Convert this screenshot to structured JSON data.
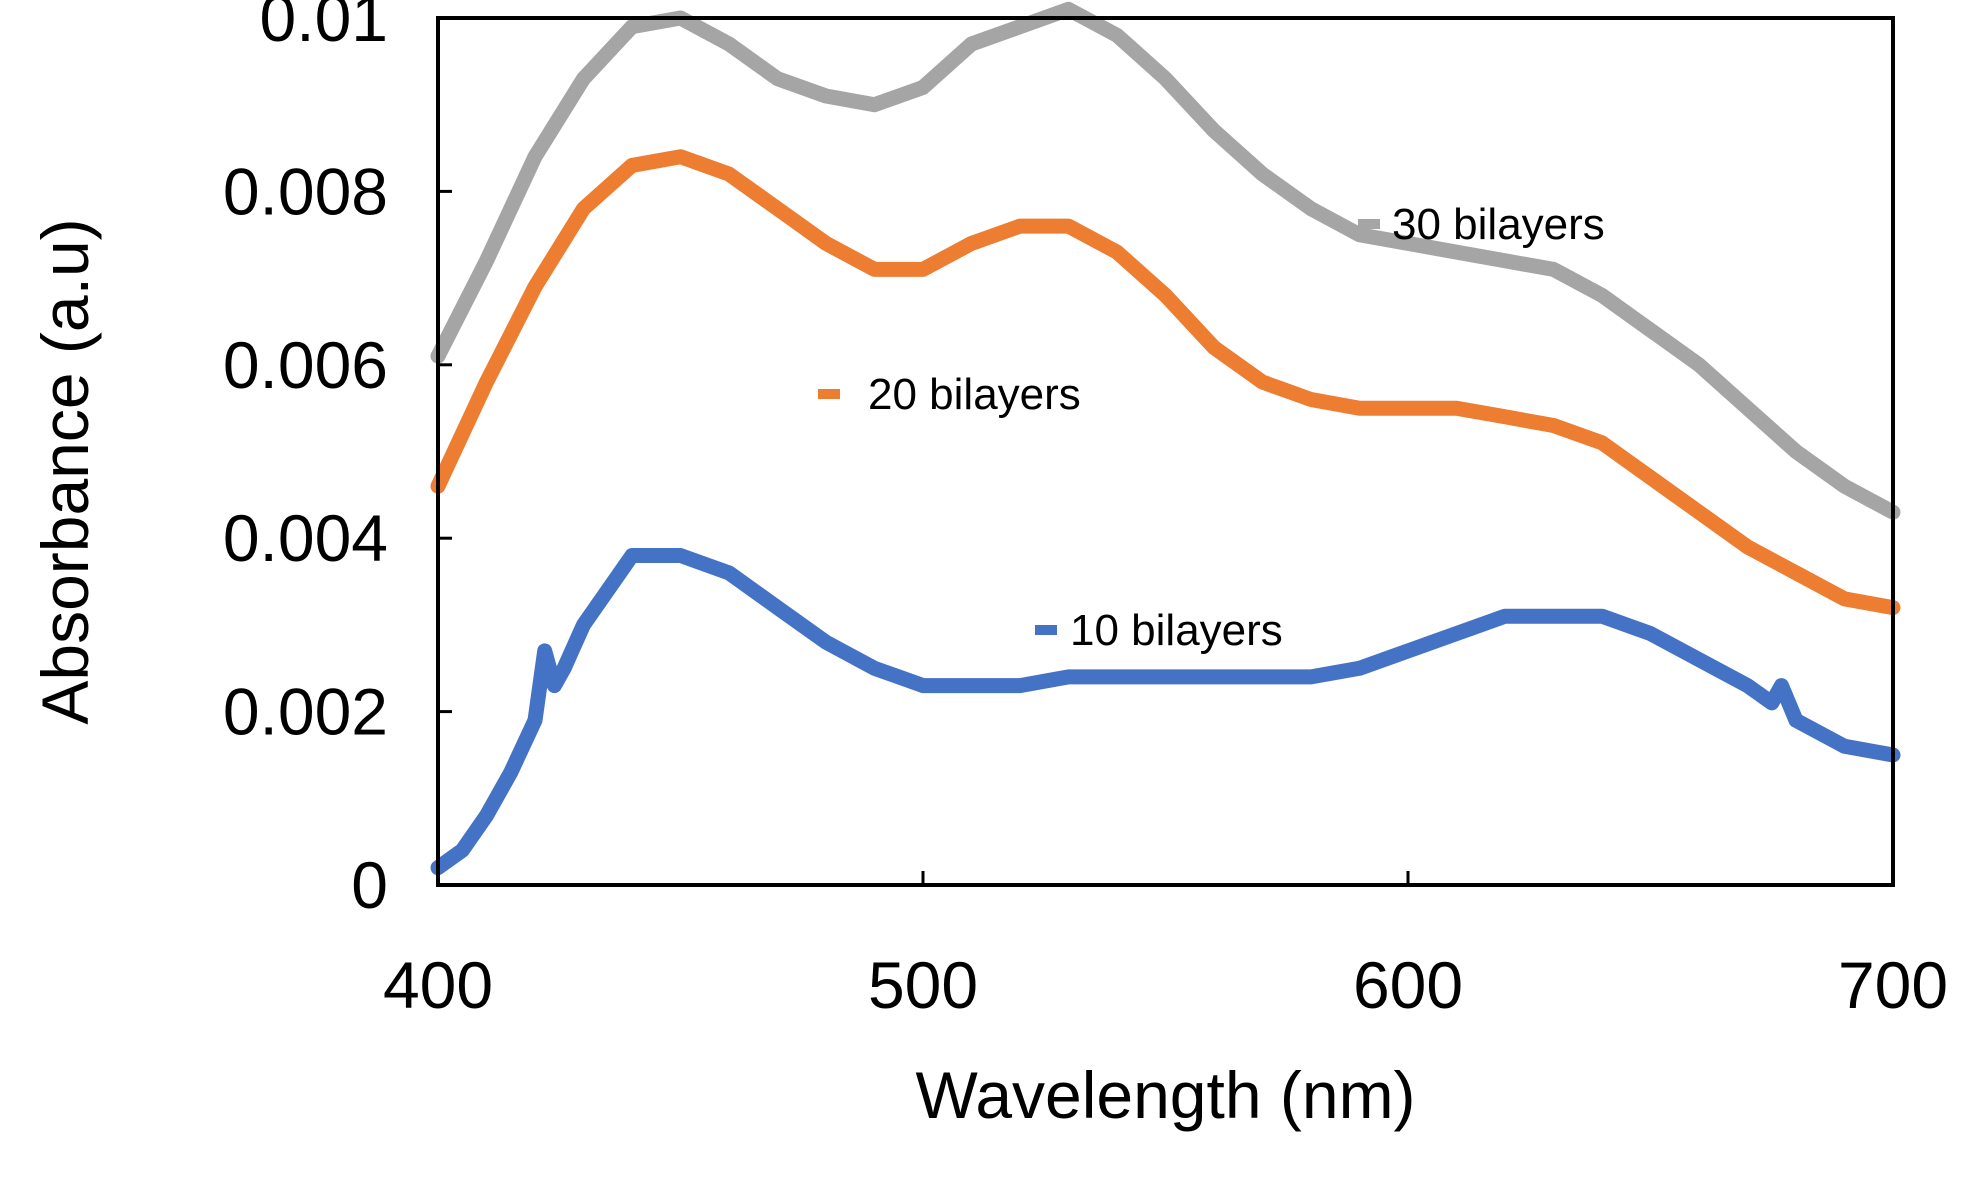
{
  "chart_data": {
    "type": "line",
    "title": "",
    "xlabel": "Wavelength (nm)",
    "ylabel": "Absorbance (a.u)",
    "xlim": [
      400,
      700
    ],
    "ylim": [
      0,
      0.01
    ],
    "xticks": [
      400,
      500,
      600,
      700
    ],
    "xtick_labels": [
      "400",
      "500",
      "600",
      "700"
    ],
    "yticks": [
      0,
      0.002,
      0.004,
      0.006,
      0.008,
      0.01
    ],
    "ytick_labels": [
      "0",
      "0.002",
      "0.004",
      "0.006",
      "0.008",
      "0.01"
    ],
    "grid": false,
    "legend_placement": "inline labels next to curves",
    "series": [
      {
        "name": "30 bilayers",
        "color": "#a5a5a5",
        "x": [
          400,
          410,
          420,
          430,
          440,
          450,
          460,
          470,
          480,
          490,
          500,
          510,
          520,
          530,
          540,
          550,
          560,
          570,
          580,
          590,
          600,
          610,
          620,
          630,
          640,
          650,
          660,
          670,
          680,
          690,
          700
        ],
        "y": [
          0.0061,
          0.0072,
          0.0084,
          0.0093,
          0.0099,
          0.01,
          0.0097,
          0.0093,
          0.0091,
          0.009,
          0.0092,
          0.0097,
          0.0099,
          0.0101,
          0.0098,
          0.0093,
          0.0087,
          0.0082,
          0.0078,
          0.0075,
          0.0074,
          0.0073,
          0.0072,
          0.0071,
          0.0068,
          0.0064,
          0.006,
          0.0055,
          0.005,
          0.0046,
          0.0043
        ]
      },
      {
        "name": "20 bilayers",
        "color": "#ed7d31",
        "x": [
          400,
          410,
          420,
          430,
          440,
          450,
          460,
          470,
          480,
          490,
          500,
          510,
          520,
          530,
          540,
          550,
          560,
          570,
          580,
          590,
          600,
          610,
          620,
          630,
          640,
          650,
          660,
          670,
          680,
          690,
          700
        ],
        "y": [
          0.0046,
          0.0058,
          0.0069,
          0.0078,
          0.0083,
          0.0084,
          0.0082,
          0.0078,
          0.0074,
          0.0071,
          0.0071,
          0.0074,
          0.0076,
          0.0076,
          0.0073,
          0.0068,
          0.0062,
          0.0058,
          0.0056,
          0.0055,
          0.0055,
          0.0055,
          0.0054,
          0.0053,
          0.0051,
          0.0047,
          0.0043,
          0.0039,
          0.0036,
          0.0033,
          0.0032
        ]
      },
      {
        "name": "10 bilayers",
        "color": "#4472c4",
        "x": [
          400,
          405,
          410,
          415,
          420,
          422,
          424,
          426,
          430,
          440,
          450,
          460,
          470,
          480,
          490,
          500,
          510,
          520,
          530,
          540,
          550,
          560,
          570,
          580,
          590,
          600,
          610,
          620,
          630,
          640,
          650,
          660,
          670,
          675,
          677,
          680,
          690,
          700
        ],
        "y": [
          0.0002,
          0.0004,
          0.0008,
          0.0013,
          0.0019,
          0.0027,
          0.0023,
          0.0025,
          0.003,
          0.0038,
          0.0038,
          0.0036,
          0.0032,
          0.0028,
          0.0025,
          0.0023,
          0.0023,
          0.0023,
          0.0024,
          0.0024,
          0.0024,
          0.0024,
          0.0024,
          0.0024,
          0.0025,
          0.0027,
          0.0029,
          0.0031,
          0.0031,
          0.0031,
          0.0029,
          0.0026,
          0.0023,
          0.0021,
          0.0023,
          0.0019,
          0.0016,
          0.0015
        ]
      }
    ],
    "legend": [
      {
        "label": "30 bilayers",
        "series": 0,
        "anchor": "top-right"
      },
      {
        "label": "20 bilayers",
        "series": 1,
        "anchor": "center"
      },
      {
        "label": "10 bilayers",
        "series": 2,
        "anchor": "center-bottom"
      }
    ]
  }
}
